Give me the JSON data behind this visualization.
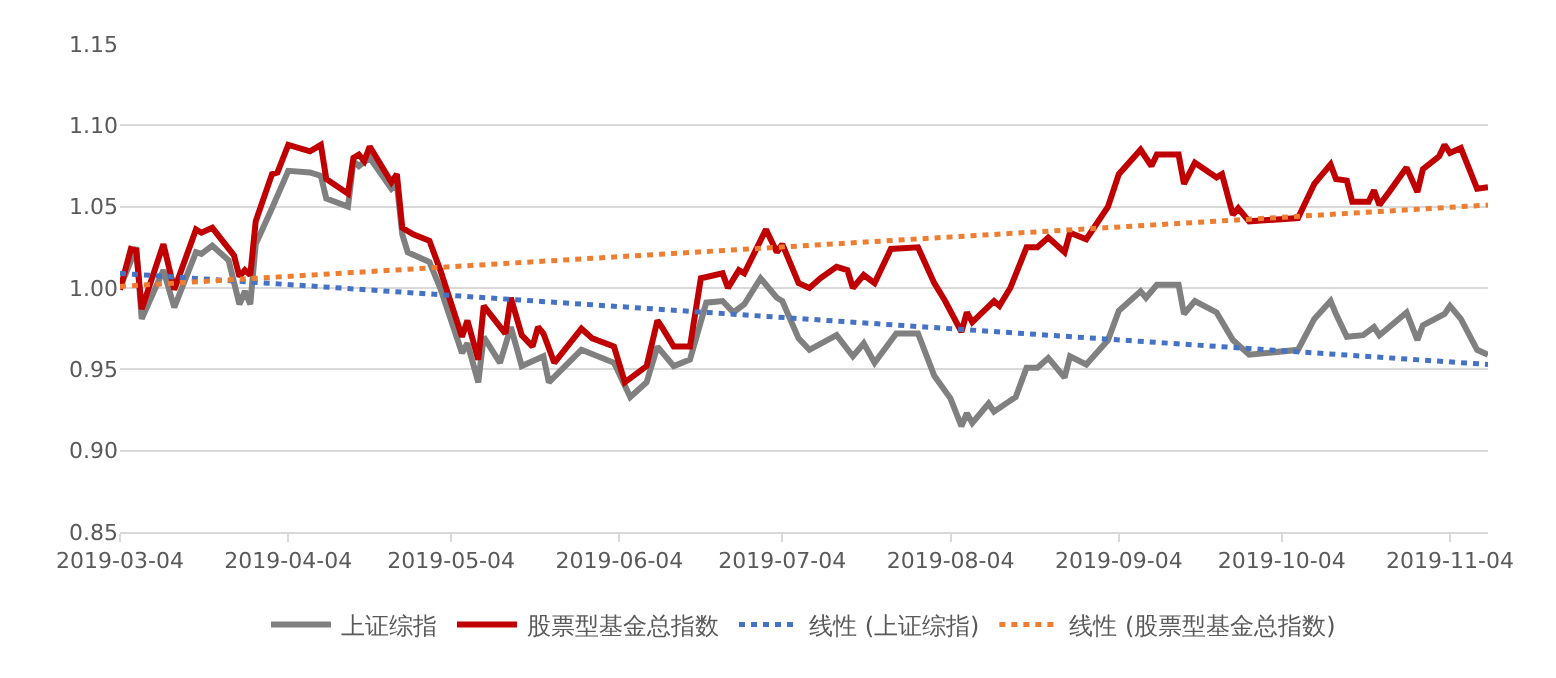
{
  "chart_data": {
    "type": "line",
    "ylim": [
      0.85,
      1.15
    ],
    "yticks": [
      0.85,
      {
        "value": 0.9,
        "label": "0.90"
      },
      0.95,
      {
        "value": 1.0,
        "label": "1.00"
      },
      1.05,
      {
        "value": 1.1,
        "label": "1.10"
      },
      1.15
    ],
    "xlim": [
      "2019-03-04",
      "2019-11-11"
    ],
    "xticks": [
      "2019-03-04",
      "2019-04-04",
      "2019-05-04",
      "2019-06-04",
      "2019-07-04",
      "2019-08-04",
      "2019-09-04",
      "2019-10-04",
      "2019-11-04"
    ],
    "grid": "y",
    "legend": "bottom",
    "marker": "none",
    "series": [
      {
        "name": "上证综指",
        "color": "#808080",
        "line_style": "solid",
        "x": [
          "2019-03-04",
          "2019-03-07",
          "2019-03-08",
          "2019-03-12",
          "2019-03-14",
          "2019-03-18",
          "2019-03-19",
          "2019-03-21",
          "2019-03-24",
          "2019-03-26",
          "2019-03-27",
          "2019-03-28",
          "2019-03-29",
          "2019-04-01",
          "2019-04-04",
          "2019-04-08",
          "2019-04-10",
          "2019-04-11",
          "2019-04-15",
          "2019-04-16",
          "2019-04-17",
          "2019-04-19",
          "2019-04-23",
          "2019-04-24",
          "2019-04-25",
          "2019-04-26",
          "2019-04-30",
          "2019-05-02",
          "2019-05-06",
          "2019-05-07",
          "2019-05-09",
          "2019-05-10",
          "2019-05-13",
          "2019-05-15",
          "2019-05-17",
          "2019-05-21",
          "2019-05-22",
          "2019-05-28",
          "2019-06-03",
          "2019-06-06",
          "2019-06-09",
          "2019-06-11",
          "2019-06-14",
          "2019-06-17",
          "2019-06-20",
          "2019-06-23",
          "2019-06-25",
          "2019-06-27",
          "2019-06-30",
          "2019-07-03",
          "2019-07-04",
          "2019-07-07",
          "2019-07-09",
          "2019-07-14",
          "2019-07-17",
          "2019-07-19",
          "2019-07-21",
          "2019-07-25",
          "2019-07-29",
          "2019-08-01",
          "2019-08-04",
          "2019-08-06",
          "2019-08-07",
          "2019-08-08",
          "2019-08-11",
          "2019-08-12",
          "2019-08-16",
          "2019-08-18",
          "2019-08-20",
          "2019-08-22",
          "2019-08-25",
          "2019-08-26",
          "2019-08-29",
          "2019-09-02",
          "2019-09-04",
          "2019-09-08",
          "2019-09-09",
          "2019-09-11",
          "2019-09-15",
          "2019-09-16",
          "2019-09-18",
          "2019-09-22",
          "2019-09-25",
          "2019-09-28",
          "2019-10-07",
          "2019-10-10",
          "2019-10-13",
          "2019-10-14",
          "2019-10-16",
          "2019-10-19",
          "2019-10-21",
          "2019-10-22",
          "2019-10-27",
          "2019-10-29",
          "2019-10-30",
          "2019-11-03",
          "2019-11-04",
          "2019-11-06",
          "2019-11-09",
          "2019-11-11"
        ],
        "values": [
          1.0,
          1.025,
          0.981,
          1.011,
          0.988,
          1.022,
          1.021,
          1.026,
          1.017,
          0.99,
          0.998,
          0.99,
          1.027,
          1.049,
          1.072,
          1.071,
          1.069,
          1.055,
          1.05,
          1.078,
          1.075,
          1.08,
          1.061,
          1.064,
          1.033,
          1.022,
          1.016,
          1.0,
          0.96,
          0.966,
          0.942,
          0.97,
          0.954,
          0.976,
          0.952,
          0.958,
          0.942,
          0.962,
          0.954,
          0.933,
          0.942,
          0.964,
          0.952,
          0.956,
          0.991,
          0.992,
          0.985,
          0.99,
          1.006,
          0.994,
          0.992,
          0.969,
          0.962,
          0.971,
          0.958,
          0.966,
          0.954,
          0.972,
          0.972,
          0.946,
          0.932,
          0.915,
          0.923,
          0.917,
          0.929,
          0.924,
          0.933,
          0.951,
          0.951,
          0.957,
          0.945,
          0.958,
          0.953,
          0.968,
          0.986,
          0.998,
          0.994,
          1.002,
          1.002,
          0.984,
          0.992,
          0.985,
          0.968,
          0.959,
          0.962,
          0.981,
          0.992,
          0.984,
          0.97,
          0.971,
          0.976,
          0.971,
          0.985,
          0.968,
          0.977,
          0.984,
          0.989,
          0.981,
          0.962,
          0.959
        ]
      },
      {
        "name": "股票型基金总指数",
        "color": "#c00000",
        "line_style": "solid",
        "x": [
          "2019-03-04",
          "2019-03-06",
          "2019-03-07",
          "2019-03-08",
          "2019-03-12",
          "2019-03-14",
          "2019-03-18",
          "2019-03-19",
          "2019-03-21",
          "2019-03-25",
          "2019-03-26",
          "2019-03-27",
          "2019-03-28",
          "2019-03-29",
          "2019-04-01",
          "2019-04-02",
          "2019-04-04",
          "2019-04-08",
          "2019-04-10",
          "2019-04-11",
          "2019-04-15",
          "2019-04-16",
          "2019-04-17",
          "2019-04-18",
          "2019-04-19",
          "2019-04-23",
          "2019-04-24",
          "2019-04-25",
          "2019-04-27",
          "2019-04-30",
          "2019-05-02",
          "2019-05-06",
          "2019-05-07",
          "2019-05-09",
          "2019-05-10",
          "2019-05-14",
          "2019-05-15",
          "2019-05-17",
          "2019-05-19",
          "2019-05-20",
          "2019-05-21",
          "2019-05-23",
          "2019-05-28",
          "2019-05-30",
          "2019-06-03",
          "2019-06-05",
          "2019-06-09",
          "2019-06-11",
          "2019-06-12",
          "2019-06-14",
          "2019-06-17",
          "2019-06-19",
          "2019-06-23",
          "2019-06-24",
          "2019-06-26",
          "2019-06-27",
          "2019-07-01",
          "2019-07-03",
          "2019-07-04",
          "2019-07-07",
          "2019-07-09",
          "2019-07-11",
          "2019-07-14",
          "2019-07-16",
          "2019-07-17",
          "2019-07-19",
          "2019-07-21",
          "2019-07-24",
          "2019-07-29",
          "2019-08-01",
          "2019-08-03",
          "2019-08-06",
          "2019-08-07",
          "2019-08-08",
          "2019-08-12",
          "2019-08-13",
          "2019-08-15",
          "2019-08-18",
          "2019-08-20",
          "2019-08-22",
          "2019-08-25",
          "2019-08-26",
          "2019-08-29",
          "2019-09-02",
          "2019-09-04",
          "2019-09-08",
          "2019-09-10",
          "2019-09-11",
          "2019-09-15",
          "2019-09-16",
          "2019-09-18",
          "2019-09-22",
          "2019-09-23",
          "2019-09-25",
          "2019-09-26",
          "2019-09-28",
          "2019-10-07",
          "2019-10-10",
          "2019-10-13",
          "2019-10-14",
          "2019-10-16",
          "2019-10-17",
          "2019-10-20",
          "2019-10-21",
          "2019-10-22",
          "2019-10-24",
          "2019-10-27",
          "2019-10-29",
          "2019-10-30",
          "2019-11-02",
          "2019-11-03",
          "2019-11-04",
          "2019-11-06",
          "2019-11-09",
          "2019-11-11"
        ],
        "values": [
          0.999,
          1.024,
          1.023,
          0.987,
          1.027,
          0.999,
          1.036,
          1.034,
          1.037,
          1.02,
          1.007,
          1.011,
          1.008,
          1.041,
          1.07,
          1.071,
          1.088,
          1.084,
          1.088,
          1.067,
          1.058,
          1.08,
          1.082,
          1.078,
          1.087,
          1.065,
          1.07,
          1.037,
          1.033,
          1.029,
          1.011,
          0.97,
          0.98,
          0.956,
          0.989,
          0.972,
          0.994,
          0.971,
          0.964,
          0.976,
          0.972,
          0.954,
          0.975,
          0.969,
          0.964,
          0.942,
          0.952,
          0.98,
          0.975,
          0.964,
          0.964,
          1.006,
          1.009,
          1.0,
          1.011,
          1.009,
          1.036,
          1.022,
          1.027,
          1.003,
          1.0,
          1.006,
          1.013,
          1.011,
          1.0,
          1.008,
          1.003,
          1.024,
          1.025,
          1.003,
          0.992,
          0.973,
          0.985,
          0.979,
          0.992,
          0.989,
          1.0,
          1.025,
          1.025,
          1.031,
          1.022,
          1.034,
          1.03,
          1.05,
          1.07,
          1.085,
          1.075,
          1.082,
          1.082,
          1.064,
          1.077,
          1.068,
          1.07,
          1.045,
          1.049,
          1.041,
          1.043,
          1.064,
          1.076,
          1.067,
          1.066,
          1.053,
          1.053,
          1.06,
          1.051,
          1.06,
          1.074,
          1.059,
          1.073,
          1.081,
          1.088,
          1.083,
          1.086,
          1.061,
          1.062
        ]
      },
      {
        "name": "线性 (上证综指)",
        "color": "#4472c4",
        "line_style": "dotted",
        "x": [
          "2019-03-04",
          "2019-11-11"
        ],
        "values": [
          1.009,
          0.953
        ]
      },
      {
        "name": "线性 (股票型基金总指数)",
        "color": "#ed7d31",
        "line_style": "dotted",
        "x": [
          "2019-03-04",
          "2019-11-11"
        ],
        "values": [
          1.001,
          1.051
        ]
      }
    ]
  }
}
